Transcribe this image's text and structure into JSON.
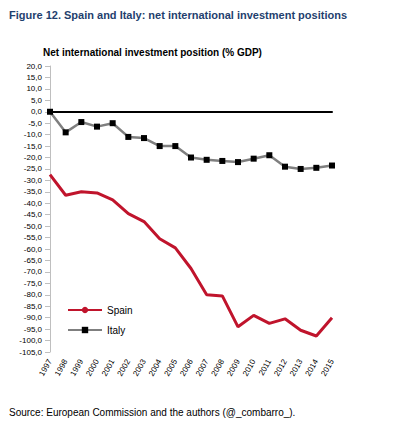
{
  "chart_data": {
    "type": "line",
    "title": "Figure 12. Spain and Italy: net international investment positions",
    "subtitle": "Net international investment position (% GDP)",
    "source": "Source: European Commission and the authors (@_combarro_).",
    "categories": [
      "1997",
      "1998",
      "1999",
      "2000",
      "2001",
      "2002",
      "2003",
      "2004",
      "2005",
      "2006",
      "2007",
      "2008",
      "2009",
      "2010",
      "2011",
      "2012",
      "2013",
      "2014",
      "2015"
    ],
    "series": [
      {
        "name": "Spain",
        "color": "#c0142c",
        "marker": "none",
        "values": [
          -27.5,
          -36.5,
          -35,
          -35.5,
          -38.5,
          -44.5,
          -48,
          -55.5,
          -59.5,
          -68.5,
          -80,
          -80.5,
          -94,
          -89,
          -92.5,
          -90.5,
          -95.5,
          -98,
          -90
        ]
      },
      {
        "name": "Italy",
        "color": "#7f7f7f",
        "marker": "square",
        "values": [
          0,
          -9,
          -4.5,
          -6.5,
          -5,
          -11,
          -11.5,
          -15,
          -15,
          -20,
          -21,
          -21.5,
          -22,
          -20.5,
          -19,
          -24,
          -25,
          -24.5,
          -23.5
        ]
      }
    ],
    "ylim": [
      -105,
      20
    ],
    "yticks": [
      {
        "value": 20,
        "label": "20,0"
      },
      {
        "value": 15,
        "label": "15,0"
      },
      {
        "value": 10,
        "label": "10,0"
      },
      {
        "value": 5,
        "label": "5,0"
      },
      {
        "value": 0,
        "label": "0,0"
      },
      {
        "value": -5,
        "label": "-5,0"
      },
      {
        "value": -10,
        "label": "-10,0"
      },
      {
        "value": -15,
        "label": "-15,0"
      },
      {
        "value": -20,
        "label": "-20,0"
      },
      {
        "value": -25,
        "label": "-25,0"
      },
      {
        "value": -30,
        "label": "-30,0"
      },
      {
        "value": -35,
        "label": "-35,0"
      },
      {
        "value": -40,
        "label": "-40,0"
      },
      {
        "value": -45,
        "label": "-45,0"
      },
      {
        "value": -50,
        "label": "-50,0"
      },
      {
        "value": -55,
        "label": "-55,0"
      },
      {
        "value": -60,
        "label": "-60,0"
      },
      {
        "value": -65,
        "label": "-65,0"
      },
      {
        "value": -70,
        "label": "-70,0"
      },
      {
        "value": -75,
        "label": "-75,0"
      },
      {
        "value": -80,
        "label": "-80,0"
      },
      {
        "value": -85,
        "label": "-85,0"
      },
      {
        "value": -90,
        "label": "-90,0"
      },
      {
        "value": -95,
        "label": "-95,0"
      },
      {
        "value": -100,
        "label": "-100,0"
      },
      {
        "value": -105,
        "label": "-105,0"
      }
    ],
    "grid": false,
    "legend": "lower left"
  }
}
